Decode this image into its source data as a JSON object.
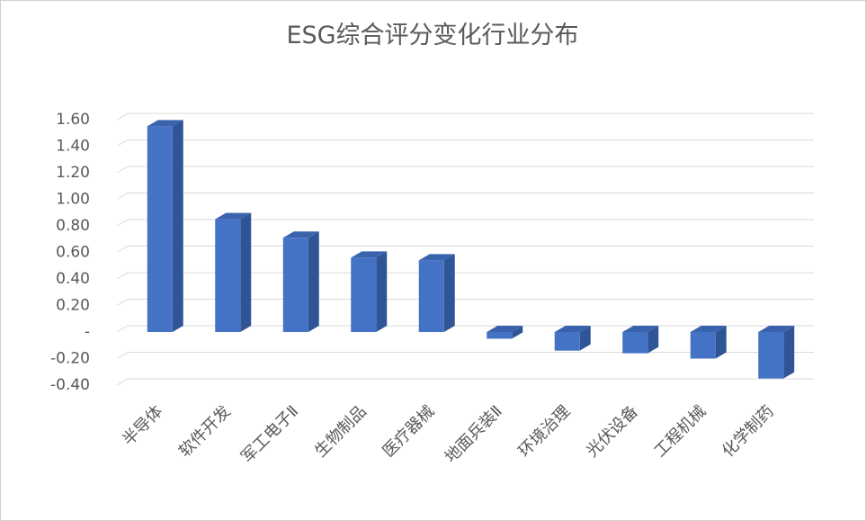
{
  "chart_data": {
    "type": "bar3d",
    "title": "ESG综合评分变化行业分布",
    "categories": [
      "半导体",
      "软件开发",
      "军工电子Ⅱ",
      "生物制品",
      "医疗器械",
      "地面兵装Ⅱ",
      "环境治理",
      "光伏设备",
      "工程机械",
      "化学制药"
    ],
    "values": [
      1.55,
      0.85,
      0.71,
      0.56,
      0.54,
      -0.05,
      -0.14,
      -0.16,
      -0.2,
      -0.35
    ],
    "color": "#4472c4",
    "ylim": [
      -0.4,
      1.6
    ],
    "yticks": [
      {
        "value": 1.6,
        "label": "1.60"
      },
      {
        "value": 1.4,
        "label": "1.40"
      },
      {
        "value": 1.2,
        "label": "1.20"
      },
      {
        "value": 1.0,
        "label": "1.00"
      },
      {
        "value": 0.8,
        "label": "0.80"
      },
      {
        "value": 0.6,
        "label": "0.60"
      },
      {
        "value": 0.4,
        "label": "0.40"
      },
      {
        "value": 0.2,
        "label": "0.20"
      },
      {
        "value": 0,
        "label": "-"
      },
      {
        "value": -0.2,
        "label": "-0.20"
      },
      {
        "value": -0.4,
        "label": "-0.40"
      }
    ],
    "grid": true
  }
}
